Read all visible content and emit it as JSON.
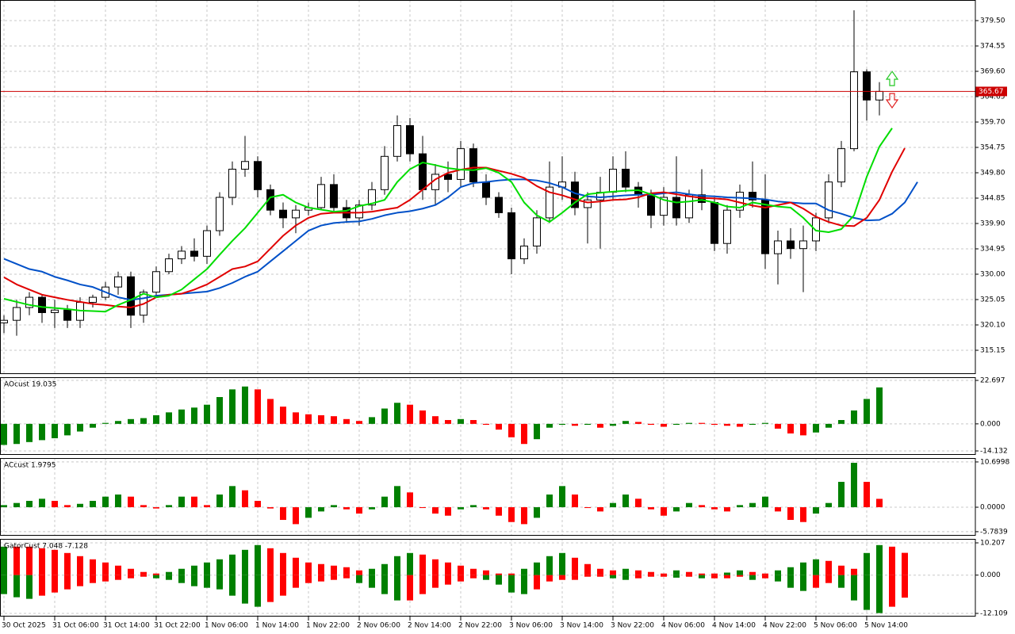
{
  "chart_data": [
    {
      "type": "candlestick",
      "categories": [
        "30 Oct 2025",
        null,
        null,
        null,
        "31 Oct 06:00",
        null,
        null,
        null,
        "31 Oct 14:00",
        null,
        null,
        null,
        "31 Oct 22:00",
        null,
        null,
        null,
        "1 Nov 06:00",
        null,
        null,
        null,
        "1 Nov 14:00",
        null,
        null,
        null,
        "1 Nov 22:00",
        null,
        null,
        null,
        "2 Nov 06:00",
        null,
        null,
        null,
        "2 Nov 14:00",
        null,
        null,
        null,
        "2 Nov 22:00",
        null,
        null,
        null,
        "3 Nov 06:00",
        null,
        null,
        null,
        "3 Nov 14:00",
        null,
        null,
        null,
        "3 Nov 22:00",
        null,
        null,
        null,
        "4 Nov 06:00",
        null,
        null,
        null,
        "4 Nov 14:00",
        null,
        null,
        null,
        "4 Nov 22:00",
        null,
        null,
        null,
        "5 Nov 06:00",
        null,
        null,
        null,
        "5 Nov 14:00",
        null,
        null,
        null,
        null
      ],
      "open": [
        320.5,
        321,
        323.5,
        325.5,
        322.5,
        323,
        321,
        324.5,
        325.5,
        327.5,
        329.5,
        322,
        326.5,
        330.5,
        333,
        334.5,
        333.5,
        338.5,
        345,
        350.5,
        352,
        346.5,
        342.5,
        341,
        342.5,
        343,
        347.5,
        343,
        341,
        343.5,
        346.5,
        353,
        359,
        353.5,
        346.5,
        349.5,
        348.5,
        354.5,
        348,
        345,
        342,
        333,
        335.5,
        341,
        347,
        348,
        343,
        344.5,
        346,
        350.5,
        347,
        345.5,
        341.5,
        345,
        341,
        345.5,
        344,
        336,
        342.5,
        346,
        344.5,
        334,
        336.5,
        335,
        336.5,
        341,
        348,
        354.5,
        369.5,
        364,
        null,
        null,
        null
      ],
      "high": [
        322,
        325,
        326.5,
        326,
        325,
        324,
        325.5,
        326,
        328.5,
        330.5,
        330.5,
        327,
        331.5,
        334,
        335.5,
        337,
        339.5,
        346,
        352,
        357,
        353,
        347.5,
        344,
        343.5,
        344,
        349,
        349.5,
        344.5,
        344.5,
        348,
        355,
        361,
        360.5,
        357,
        351.5,
        352,
        356,
        355.5,
        349.5,
        346,
        343,
        337,
        342.5,
        352,
        353,
        350,
        346,
        349,
        353,
        354,
        348,
        346.5,
        347,
        353,
        346.5,
        350.5,
        345,
        343.5,
        347.5,
        352,
        349.5,
        338.5,
        339,
        339.5,
        342,
        349.5,
        356,
        381.5,
        370,
        367.5,
        null,
        null,
        null
      ],
      "low": [
        318.5,
        318,
        322,
        320.5,
        319.5,
        319.5,
        319.5,
        323.5,
        325,
        326,
        319.5,
        320.5,
        325.5,
        330,
        332,
        332.5,
        332,
        337.5,
        343.5,
        349,
        345,
        341.5,
        339,
        338,
        341.5,
        342.5,
        342,
        340,
        339.5,
        342.5,
        345.5,
        352,
        352,
        344.5,
        343.5,
        346,
        347,
        347,
        343.5,
        341,
        330,
        332,
        334,
        340,
        344.5,
        341.5,
        336,
        335,
        344.5,
        346,
        343,
        339,
        339.5,
        339.5,
        340,
        342.5,
        334.5,
        334,
        341,
        343,
        331,
        328,
        333,
        326.5,
        334.5,
        340,
        347,
        354,
        360,
        361,
        null,
        null,
        null
      ],
      "close": [
        321,
        323.5,
        325.5,
        322.5,
        323,
        321,
        324.5,
        325.5,
        327.5,
        329.5,
        322,
        326.5,
        330.5,
        333,
        334.5,
        333.5,
        338.5,
        345,
        350.5,
        352,
        346.5,
        342.5,
        341,
        342.5,
        343,
        347.5,
        343,
        341,
        343.5,
        346.5,
        353,
        359,
        353.5,
        346.5,
        349.5,
        348.5,
        354.5,
        348,
        345,
        342,
        333,
        335.5,
        341,
        347,
        348,
        343,
        344.5,
        346,
        350.5,
        347,
        345.5,
        341.5,
        345,
        341,
        345.5,
        344,
        336,
        342.5,
        346,
        344.5,
        334,
        336.5,
        335,
        336.5,
        341,
        348,
        354.5,
        369.5,
        364,
        365.67,
        null,
        null,
        null
      ],
      "up_color": "#ffffff",
      "down_color": "#000000",
      "series": [
        {
          "color": "#0050c8",
          "values": [
            333,
            332,
            331,
            330.5,
            329.5,
            328.8,
            328,
            327.5,
            326.5,
            325.5,
            325,
            325.3,
            325.8,
            326,
            326.2,
            326.4,
            326.6,
            327.3,
            328.3,
            329.5,
            330.5,
            332.5,
            334.5,
            336.5,
            338.5,
            339.5,
            340,
            340.2,
            340.3,
            340.8,
            341.5,
            342,
            342.3,
            342.8,
            343.5,
            345,
            347,
            347.8,
            348,
            348.3,
            348.5,
            348.5,
            348.3,
            347.8,
            347,
            345.8,
            345.2,
            345,
            345.2,
            345.4,
            345.5,
            345.5,
            345.8,
            346,
            345.6,
            345.3,
            345.2,
            345,
            344.9,
            344.8,
            344.6,
            344.2,
            344,
            343.8,
            343.8,
            342.5,
            341.8,
            341,
            340.5,
            340.6,
            341.8,
            344,
            348
          ]
        },
        {
          "color": "#e00000",
          "values": [
            329.4,
            328,
            327,
            326,
            325.5,
            325,
            324.6,
            324.2,
            324,
            323.7,
            323.5,
            324.2,
            325.5,
            326,
            326.2,
            327,
            328,
            329.5,
            331,
            331.5,
            332.5,
            335,
            337.5,
            339.5,
            341,
            341.8,
            342,
            342,
            342,
            342.2,
            342.6,
            343,
            344.5,
            346.5,
            348.5,
            349.8,
            350.4,
            350.8,
            350.8,
            350.2,
            349.6,
            348.8,
            347.2,
            346,
            345.4,
            344.6,
            344,
            344.2,
            344.5,
            344.6,
            345,
            345.8,
            346,
            345.6,
            345.2,
            344.9,
            344.8,
            344.6,
            344,
            343.4,
            343,
            343.5,
            344,
            342.8,
            341.2,
            340.2,
            339.5,
            339.4,
            341,
            344.5,
            350,
            354.6,
            null
          ]
        },
        {
          "color": "#00dd00",
          "values": [
            325.2,
            324.6,
            324,
            323.6,
            323.4,
            323.2,
            322.9,
            322.8,
            322.7,
            324,
            325,
            326.2,
            325.5,
            325.8,
            327,
            329,
            331,
            333.8,
            336.5,
            339,
            342,
            345,
            345.5,
            344,
            343,
            342.6,
            342.2,
            342.4,
            343.3,
            343.8,
            344.5,
            348,
            350.5,
            351.8,
            351.3,
            350.7,
            350.4,
            350.3,
            350.7,
            349.8,
            348,
            344,
            341.5,
            340.2,
            342,
            344,
            345.6,
            345.9,
            346.1,
            346.3,
            346.4,
            345.6,
            344.5,
            344,
            344.2,
            344.5,
            344,
            343.2,
            343,
            344,
            343.6,
            343.2,
            343,
            341,
            338.5,
            338.2,
            338.8,
            341.5,
            349,
            354.9,
            358.5,
            null,
            null
          ]
        }
      ],
      "ylim": [
        310.51,
        383.52
      ],
      "yticks": [
        {
          "value": 379.5,
          "label": "379.50"
        },
        374.55,
        {
          "value": 369.6,
          "label": "369.60"
        },
        364.65,
        {
          "value": 359.7,
          "label": "359.70"
        },
        354.75,
        {
          "value": 349.8,
          "label": "349.80"
        },
        344.85,
        {
          "value": 339.9,
          "label": "339.90"
        },
        334.95,
        {
          "value": 330,
          "label": "330.00"
        },
        325.05,
        {
          "value": 320.1,
          "label": "320.10"
        },
        315.15
      ],
      "grid": true,
      "current_price": 365.67,
      "current_price_color": "#cc0000"
    },
    {
      "type": "bar",
      "label": "AOcust 19.035",
      "values": [
        -11,
        -10.5,
        -9.5,
        -8.5,
        -7.5,
        -6,
        -4,
        -2,
        0.5,
        1.5,
        2.5,
        3,
        4.5,
        6,
        7.5,
        8.5,
        10,
        14,
        18,
        19.5,
        18,
        13,
        9,
        6,
        5,
        4.5,
        4,
        2.5,
        1.5,
        3.5,
        8,
        11,
        10,
        7,
        4,
        2,
        2.5,
        2,
        -0.5,
        -3,
        -7,
        -10.5,
        -8,
        -2,
        -0.5,
        -1,
        -0.5,
        -2,
        -1,
        1.5,
        1,
        -0.5,
        -1.5,
        -0.5,
        0.5,
        0.5,
        -0.5,
        -1,
        -1.5,
        -0.5,
        0.5,
        -2.5,
        -5,
        -6,
        -4.5,
        -2,
        2,
        7,
        13,
        19.035,
        null,
        null,
        null
      ],
      "up_color": "#008000",
      "down_color": "#ff0000",
      "ylim": [
        -16.2,
        24.35
      ],
      "yticks": [
        22.697,
        {
          "value": 0,
          "label": "0.000"
        },
        -14.132
      ],
      "grid": true
    },
    {
      "type": "bar",
      "label": "ACcust 1.9795",
      "values": [
        0.5,
        1,
        1.5,
        2,
        1.5,
        0.5,
        0.8,
        1.5,
        2.5,
        3,
        2.5,
        0.5,
        -0.3,
        0.5,
        2.5,
        2.5,
        0.5,
        3,
        5,
        4,
        1.5,
        -0.3,
        -3,
        -4,
        -2.5,
        -1,
        0.5,
        -0.5,
        -1.5,
        -0.5,
        2.5,
        5,
        3.5,
        0,
        -1.5,
        -2,
        -0.5,
        0.5,
        -0.5,
        -2,
        -3.5,
        -4,
        -2.5,
        3,
        5,
        3,
        0,
        -1,
        1,
        3,
        2,
        -0.5,
        -2,
        -1,
        1,
        0.5,
        -0.5,
        -1,
        0.5,
        1,
        2.5,
        -1,
        -3,
        -3.5,
        -1.5,
        1,
        6,
        10.5,
        6,
        1.9795,
        null,
        null,
        null
      ],
      "up_color": "#008000",
      "down_color": "#ff0000",
      "ylim": [
        -6.74,
        11.62
      ],
      "yticks": [
        10.6998,
        {
          "value": 0,
          "label": "0.0000"
        },
        -5.7839
      ],
      "grid": true
    },
    {
      "type": "gator",
      "label": "GatorCust 7.048 -7.128",
      "series": [
        {
          "values": [
            9,
            9,
            9,
            8.5,
            8,
            7,
            6,
            5,
            4,
            3,
            2,
            1,
            0.5,
            1,
            2,
            3,
            4,
            5,
            6.5,
            8,
            9.5,
            8.5,
            7,
            5.5,
            4,
            3.5,
            3,
            2.5,
            1.5,
            2,
            3.5,
            6,
            7,
            6.5,
            5,
            4,
            3,
            2,
            1.5,
            0.5,
            0.5,
            2,
            4,
            6,
            7,
            5.5,
            3.5,
            2,
            1.5,
            2,
            1.5,
            1,
            0.5,
            1.5,
            1,
            0.5,
            0.5,
            0.8,
            1.5,
            1,
            0.5,
            1.5,
            2.5,
            4,
            5,
            4.5,
            3,
            2,
            7,
            9.5,
            9,
            7.048,
            null
          ]
        },
        {
          "values": [
            -6,
            -7,
            -7.5,
            -6.5,
            -5.5,
            -4.5,
            -3.5,
            -2.5,
            -2,
            -1.5,
            -1,
            -0.5,
            -1,
            -1.5,
            -2.5,
            -3.5,
            -4,
            -4.5,
            -6.5,
            -9,
            -10,
            -8.5,
            -6.5,
            -4,
            -2.5,
            -2,
            -1.5,
            -1,
            -2.5,
            -4,
            -6,
            -8,
            -8,
            -6,
            -4,
            -3,
            -2,
            -1,
            -1.5,
            -3,
            -5.5,
            -6,
            -4.5,
            -2,
            -1.5,
            -1.5,
            -0.5,
            -0.5,
            -1,
            -1.5,
            -1,
            -0.5,
            -0.5,
            -0.8,
            -0.5,
            -1,
            -1,
            -1,
            -0.5,
            -1.5,
            -1,
            -2,
            -4,
            -5,
            -4,
            -2.5,
            -4,
            -8,
            -11,
            -12,
            -10,
            -7.128,
            null
          ]
        }
      ],
      "up_color": "#008000",
      "down_color": "#ff0000",
      "ylim": [
        -13.11,
        11.46
      ],
      "yticks": [
        10.207,
        {
          "value": 0,
          "label": "0.000"
        },
        -12.109
      ],
      "grid": true
    }
  ]
}
